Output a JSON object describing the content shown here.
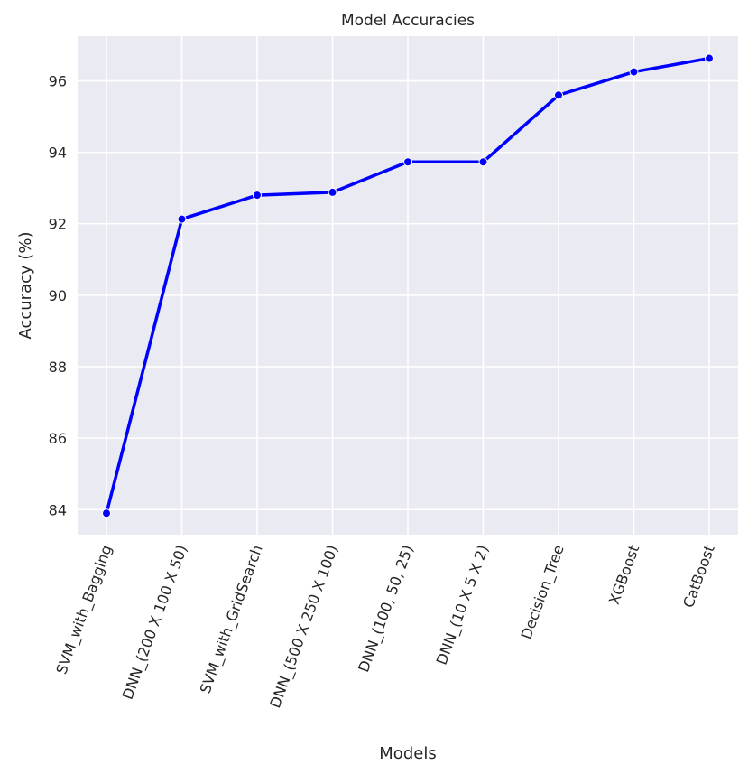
{
  "chart_data": {
    "type": "line",
    "title": "Model Accuracies",
    "xlabel": "Models",
    "ylabel": "Accuracy (%)",
    "categories": [
      "SVM_with_Bagging",
      "DNN_(200 X 100 X 50)",
      "SVM_with_GridSearch",
      "DNN_(500 X 250 X 100)",
      "DNN_(100, 50, 25)",
      "DNN_(10 X 5 X 2)",
      "Decision_Tree",
      "XGBoost",
      "CatBoost"
    ],
    "values": [
      83.9,
      92.13,
      92.8,
      92.88,
      93.73,
      93.73,
      95.6,
      96.25,
      96.63
    ],
    "yticks": [
      84,
      86,
      88,
      90,
      92,
      94,
      96
    ],
    "ylim": [
      83.3,
      97.25
    ],
    "grid": true,
    "line_color": "#0000ff",
    "background_color": "#eaeaf2",
    "grid_color": "#ffffff"
  }
}
